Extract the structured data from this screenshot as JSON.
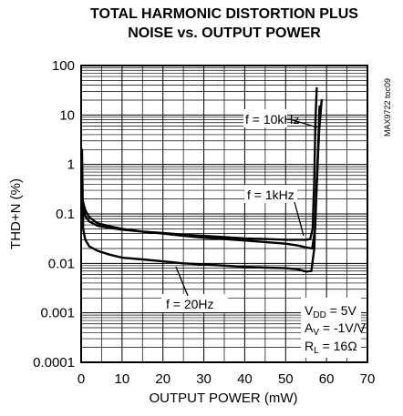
{
  "chart_data": {
    "type": "line",
    "title_line1": "TOTAL HARMONIC DISTORTION PLUS",
    "title_line2": "NOISE vs. OUTPUT POWER",
    "xlabel": "OUTPUT POWER (mW)",
    "ylabel": "THD+N (%)",
    "xlim": [
      0,
      70
    ],
    "ylim": [
      0.0001,
      100
    ],
    "y_scale": "log",
    "grid": true,
    "x_ticks": [
      "0",
      "10",
      "20",
      "30",
      "40",
      "50",
      "60",
      "70"
    ],
    "y_ticks": [
      "0.0001",
      "0.001",
      "0.01",
      "0.1",
      "1",
      "10",
      "100"
    ],
    "part_code": "MAX9722 toc09",
    "conditions": {
      "vdd": {
        "sym": "V",
        "sub": "DD",
        "val": " = 5V"
      },
      "av": {
        "sym": "A",
        "sub": "V",
        "val": " = -1V/V"
      },
      "rl": {
        "sym": "R",
        "sub": "L",
        "val": " = 16Ω"
      }
    },
    "series": [
      {
        "name": "f = 10kHz",
        "x": [
          0.2,
          0.5,
          1,
          2,
          4,
          7,
          10,
          15,
          20,
          25,
          30,
          35,
          40,
          45,
          50,
          53,
          55,
          56,
          56.6,
          57,
          57.3,
          57.6
        ],
        "y": [
          0.2,
          0.15,
          0.09,
          0.07,
          0.058,
          0.052,
          0.048,
          0.044,
          0.041,
          0.038,
          0.036,
          0.034,
          0.032,
          0.031,
          0.03,
          0.03,
          0.03,
          0.031,
          0.05,
          0.5,
          8,
          35
        ]
      },
      {
        "name": "f = 1kHz",
        "x": [
          0.2,
          0.5,
          1,
          2,
          4,
          7,
          10,
          15,
          20,
          25,
          30,
          35,
          40,
          45,
          50,
          53,
          55,
          56.5,
          57.2,
          57.8,
          58.3
        ],
        "y": [
          0.25,
          0.17,
          0.12,
          0.085,
          0.065,
          0.056,
          0.05,
          0.044,
          0.04,
          0.036,
          0.033,
          0.031,
          0.029,
          0.027,
          0.025,
          0.023,
          0.021,
          0.02,
          0.05,
          1,
          15
        ]
      },
      {
        "name": "f = 20Hz",
        "x": [
          0.2,
          0.5,
          1,
          2,
          4,
          7,
          10,
          15,
          20,
          25,
          30,
          35,
          40,
          45,
          50,
          53,
          55,
          56.3,
          57,
          57.5,
          58.2,
          58.8
        ],
        "y": [
          2,
          0.05,
          0.03,
          0.022,
          0.018,
          0.015,
          0.013,
          0.012,
          0.011,
          0.01,
          0.0095,
          0.009,
          0.0085,
          0.0082,
          0.008,
          0.0076,
          0.0068,
          0.007,
          0.02,
          0.3,
          5,
          20
        ]
      }
    ],
    "annotations": [
      {
        "text": "f = 10kHz"
      },
      {
        "text": "f = 1kHz"
      },
      {
        "text": "f = 20Hz"
      }
    ]
  }
}
